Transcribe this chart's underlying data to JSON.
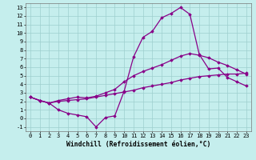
{
  "xlabel": "Windchill (Refroidissement éolien,°C)",
  "bg_color": "#c5eeed",
  "grid_color": "#9ecfce",
  "line_color": "#880088",
  "marker": "D",
  "marker_size": 1.8,
  "line_width": 0.9,
  "xlim": [
    -0.5,
    23.5
  ],
  "ylim": [
    -1.5,
    13.5
  ],
  "xticks": [
    0,
    1,
    2,
    3,
    4,
    5,
    6,
    7,
    8,
    9,
    10,
    11,
    12,
    13,
    14,
    15,
    16,
    17,
    18,
    19,
    20,
    21,
    22,
    23
  ],
  "yticks": [
    -1,
    0,
    1,
    2,
    3,
    4,
    5,
    6,
    7,
    8,
    9,
    10,
    11,
    12,
    13
  ],
  "curve1_x": [
    0,
    1,
    2,
    3,
    4,
    5,
    6,
    7,
    8,
    9,
    10,
    11,
    12,
    13,
    14,
    15,
    16,
    17,
    18,
    19,
    20,
    21,
    22,
    23
  ],
  "curve1_y": [
    2.5,
    2.1,
    1.8,
    1.0,
    0.6,
    0.4,
    0.2,
    -1.0,
    0.1,
    0.3,
    3.2,
    7.2,
    9.5,
    10.2,
    11.8,
    12.3,
    13.0,
    12.2,
    7.5,
    5.8,
    5.9,
    4.8,
    4.3,
    3.8
  ],
  "curve2_x": [
    0,
    1,
    2,
    3,
    4,
    5,
    6,
    7,
    8,
    9,
    10,
    11,
    12,
    13,
    14,
    15,
    16,
    17,
    18,
    19,
    20,
    21,
    22,
    23
  ],
  "curve2_y": [
    2.5,
    2.1,
    1.8,
    2.1,
    2.3,
    2.5,
    2.4,
    2.6,
    3.0,
    3.4,
    4.3,
    5.0,
    5.5,
    5.9,
    6.3,
    6.8,
    7.3,
    7.6,
    7.4,
    7.1,
    6.6,
    6.2,
    5.7,
    5.2
  ],
  "curve3_x": [
    0,
    1,
    2,
    3,
    4,
    5,
    6,
    7,
    8,
    9,
    10,
    11,
    12,
    13,
    14,
    15,
    16,
    17,
    18,
    19,
    20,
    21,
    22,
    23
  ],
  "curve3_y": [
    2.5,
    2.1,
    1.8,
    2.0,
    2.1,
    2.2,
    2.3,
    2.5,
    2.7,
    2.9,
    3.1,
    3.3,
    3.6,
    3.8,
    4.0,
    4.2,
    4.5,
    4.7,
    4.9,
    5.0,
    5.1,
    5.2,
    5.2,
    5.3
  ],
  "tick_fontsize": 5.0,
  "label_fontsize": 5.8
}
